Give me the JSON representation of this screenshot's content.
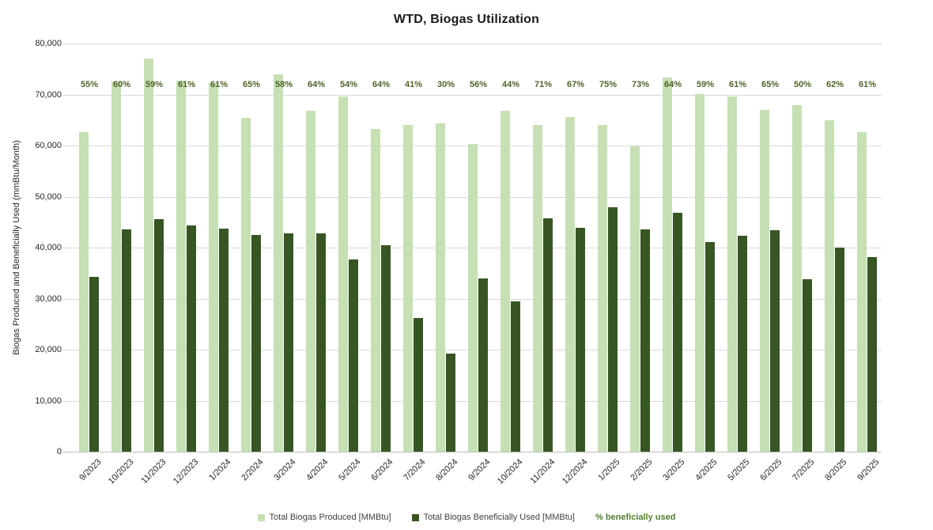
{
  "title": "WTD, Biogas Utilization",
  "colors": {
    "produced_bar": "#c6e0b4",
    "used_bar": "#375623",
    "pct_label_text": "#4f6228",
    "legend_pct_text": "#538135",
    "gridline": "#d9d9d9",
    "axis_line": "#bfbfbf",
    "axis_text": "#262626"
  },
  "legend": {
    "items": [
      {
        "label": "Total Biogas Produced [MMBtu]",
        "swatch": "#c6e0b4",
        "text_color": "#404040",
        "bold": false
      },
      {
        "label": "Total Biogas Beneficially Used [MMBtu]",
        "swatch": "#375623",
        "text_color": "#404040",
        "bold": false
      },
      {
        "label": "% beneficially used",
        "swatch": null,
        "text_color": "#538135",
        "bold": true
      }
    ]
  },
  "chart_data": {
    "type": "bar",
    "title": "WTD, Biogas Utilization",
    "xlabel": "",
    "ylabel": "Biogas Produced and Beneficially Used (mmBtu/Month)",
    "ylim": [
      0,
      80000
    ],
    "y_tick_step": 10000,
    "y_tick_labels": [
      "80,000",
      "70,000",
      "60,000",
      "50,000",
      "40,000",
      "30,000",
      "20,000",
      "10,000",
      "0"
    ],
    "grid": true,
    "legend_position": "bottom",
    "categories": [
      "9/2023",
      "10/2023",
      "11/2023",
      "12/2023",
      "1/2024",
      "2/2024",
      "3/2024",
      "4/2024",
      "5/2024",
      "6/2024",
      "7/2024",
      "8/2024",
      "9/2024",
      "10/2024",
      "11/2024",
      "12/2024",
      "1/2025",
      "2/2025",
      "3/2025",
      "4/2025",
      "5/2025",
      "6/2025",
      "7/2025",
      "8/2025",
      "9/2025"
    ],
    "series": [
      {
        "name": "Total Biogas Produced [MMBtu]",
        "color": "#c6e0b4",
        "values": [
          62700,
          72500,
          77100,
          72700,
          72200,
          65500,
          73900,
          66800,
          69600,
          63200,
          64100,
          64300,
          60300,
          66800,
          64100,
          65600,
          64100,
          59800,
          73300,
          70100,
          69600,
          66900,
          67900,
          65000,
          62700
        ]
      },
      {
        "name": "Total Biogas Beneficially Used [MMBtu]",
        "color": "#375623",
        "values": [
          34300,
          43500,
          45600,
          44300,
          43700,
          42500,
          42800,
          42800,
          37700,
          40500,
          26200,
          19300,
          33900,
          29500,
          45700,
          43900,
          47900,
          43500,
          46800,
          41100,
          42300,
          43400,
          33800,
          40000,
          38100
        ]
      }
    ],
    "percent_labels": {
      "name": "% beneficially used",
      "values": [
        "55%",
        "60%",
        "59%",
        "61%",
        "61%",
        "65%",
        "58%",
        "64%",
        "54%",
        "64%",
        "41%",
        "30%",
        "56%",
        "44%",
        "71%",
        "67%",
        "75%",
        "73%",
        "64%",
        "59%",
        "61%",
        "65%",
        "50%",
        "62%",
        "61%"
      ]
    }
  }
}
